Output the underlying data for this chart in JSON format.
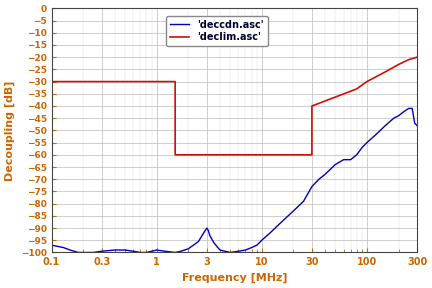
{
  "xlabel": "Frequency [MHz]",
  "ylabel": "Decoupling [dB]",
  "xlim": [
    0.1,
    300
  ],
  "ylim": [
    -100,
    0
  ],
  "yticks": [
    0,
    -5,
    -10,
    -15,
    -20,
    -25,
    -30,
    -35,
    -40,
    -45,
    -50,
    -55,
    -60,
    -65,
    -70,
    -75,
    -80,
    -85,
    -90,
    -95,
    -100
  ],
  "xtick_vals": [
    0.1,
    0.3,
    1,
    3,
    10,
    30,
    100,
    300
  ],
  "xtick_labels": [
    "0.1",
    "0.3",
    "1",
    "3",
    "10",
    "30",
    "100",
    "300"
  ],
  "line_blue_label": "'deccdn.asc'",
  "line_red_label": "'declim.asc'",
  "line_blue_color": "#0000bb",
  "line_red_color": "#cc1100",
  "background_color": "#ffffff",
  "grid_major_color": "#bbbbbb",
  "grid_minor_color": "#dddddd",
  "tick_color": "#cc6600",
  "label_color": "#cc6600",
  "blue_freq": [
    0.1,
    0.13,
    0.15,
    0.18,
    0.2,
    0.25,
    0.3,
    0.4,
    0.5,
    0.6,
    0.7,
    0.8,
    0.9,
    1.0,
    1.2,
    1.5,
    1.7,
    2.0,
    2.5,
    2.8,
    3.0,
    3.1,
    3.2,
    3.5,
    4.0,
    5.0,
    6.0,
    7.0,
    8.0,
    9.0,
    10.0,
    12.0,
    15.0,
    20.0,
    25.0,
    30.0,
    35.0,
    40.0,
    50.0,
    60.0,
    70.0,
    80.0,
    90.0,
    100.0,
    120.0,
    150.0,
    180.0,
    200.0,
    230.0,
    250.0,
    270.0,
    285.0,
    300.0
  ],
  "blue_val": [
    -97,
    -98,
    -99,
    -100,
    -100,
    -100,
    -99.5,
    -99,
    -99,
    -99.5,
    -100,
    -100,
    -99.5,
    -99,
    -99.5,
    -100,
    -99.5,
    -98.5,
    -95.5,
    -92,
    -90,
    -91,
    -93,
    -96,
    -99,
    -100,
    -99.5,
    -99,
    -98,
    -97,
    -95,
    -92,
    -88,
    -83,
    -79,
    -73,
    -70,
    -68,
    -64,
    -62,
    -62,
    -60,
    -57,
    -55,
    -52,
    -48,
    -45,
    -44,
    -42,
    -41,
    -41,
    -47,
    -48
  ],
  "red_freq": [
    0.1,
    1.5,
    1.5,
    2.0,
    2.0,
    30.0,
    30.0,
    80.0,
    100.0,
    150.0,
    200.0,
    250.0,
    300.0
  ],
  "red_val": [
    -30,
    -30,
    -60,
    -60,
    -60,
    -60,
    -40,
    -33,
    -30,
    -26,
    -23,
    -21,
    -20
  ]
}
